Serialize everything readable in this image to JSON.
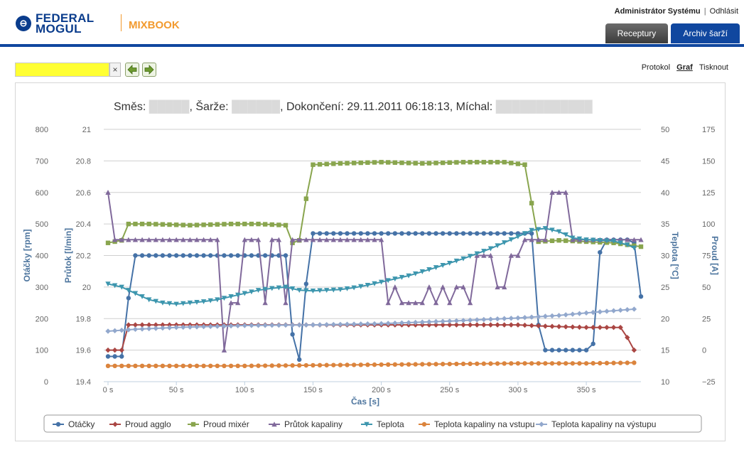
{
  "brand": {
    "logo_line1": "FEDERAL",
    "logo_line2": "MOGUL",
    "app_name": "MIXBOOK"
  },
  "user_bar": {
    "user": "Administrátor Systému",
    "separator": "|",
    "logout": "Odhlásit"
  },
  "tabs": [
    {
      "label": "Receptury",
      "active": false
    },
    {
      "label": "Archiv šarží",
      "active": true
    }
  ],
  "search": {
    "value": "",
    "clear_symbol": "×"
  },
  "view_links": [
    {
      "label": "Protokol",
      "current": false
    },
    {
      "label": "Graf",
      "current": true
    },
    {
      "label": "Tisknout",
      "current": false
    }
  ],
  "colors": {
    "brand_blue": "#10479f",
    "brand_orange": "#f29a2e",
    "search_highlight": "#ffff33"
  },
  "chart_data": {
    "type": "line",
    "title_prefix": "Směs: ",
    "title_batch_label": ", Šarže: ",
    "title_completion": ", Dokončení: 29.11.2011 06:18:13, Míchal: ",
    "xlabel": "Čas [s]",
    "x_ticks": [
      "0 s",
      "50 s",
      "100 s",
      "150 s",
      "200 s",
      "250 s",
      "300 s",
      "350 s"
    ],
    "x_range": [
      0,
      390
    ],
    "grid": true,
    "legend_position": "bottom",
    "axes": [
      {
        "label": "Otáčky [rpm]",
        "range": [
          0,
          800
        ],
        "ticks": [
          "800",
          "700",
          "600",
          "500",
          "400",
          "300",
          "200",
          "100",
          "0"
        ],
        "side": "left"
      },
      {
        "label": "Průtok [l/min]",
        "range": [
          19.4,
          21
        ],
        "ticks": [
          "21",
          "20.8",
          "20.6",
          "20.4",
          "20.2",
          "20",
          "19.8",
          "19.6",
          "19.4"
        ],
        "side": "left"
      },
      {
        "label": "Teplota [°C]",
        "range": [
          10,
          50
        ],
        "ticks": [
          "50",
          "45",
          "40",
          "35",
          "30",
          "25",
          "20",
          "15",
          "10"
        ],
        "side": "right"
      },
      {
        "label": "Proud [A]",
        "range": [
          -25,
          175
        ],
        "ticks": [
          "175",
          "150",
          "125",
          "100",
          "75",
          "50",
          "25",
          "0",
          "−25"
        ],
        "side": "right"
      }
    ],
    "series": [
      {
        "name": "Otáčky",
        "color": "#4572a7",
        "marker": "circle",
        "axis": 0,
        "points": [
          [
            0,
            80
          ],
          [
            5,
            80
          ],
          [
            10,
            80
          ],
          [
            15,
            265
          ],
          [
            20,
            400
          ],
          [
            30,
            400
          ],
          [
            40,
            400
          ],
          [
            50,
            400
          ],
          [
            60,
            400
          ],
          [
            70,
            400
          ],
          [
            80,
            400
          ],
          [
            90,
            400
          ],
          [
            100,
            400
          ],
          [
            110,
            400
          ],
          [
            120,
            400
          ],
          [
            130,
            400
          ],
          [
            135,
            150
          ],
          [
            140,
            70
          ],
          [
            145,
            310
          ],
          [
            150,
            470
          ],
          [
            160,
            470
          ],
          [
            180,
            470
          ],
          [
            200,
            470
          ],
          [
            220,
            470
          ],
          [
            240,
            470
          ],
          [
            260,
            470
          ],
          [
            280,
            470
          ],
          [
            300,
            470
          ],
          [
            310,
            470
          ],
          [
            315,
            180
          ],
          [
            320,
            100
          ],
          [
            330,
            100
          ],
          [
            340,
            100
          ],
          [
            350,
            100
          ],
          [
            355,
            120
          ],
          [
            360,
            410
          ],
          [
            365,
            450
          ],
          [
            370,
            450
          ],
          [
            380,
            450
          ],
          [
            385,
            440
          ],
          [
            390,
            270
          ]
        ]
      },
      {
        "name": "Proud agglo",
        "color": "#aa4643",
        "marker": "diamond",
        "axis": 3,
        "points": [
          [
            0,
            0
          ],
          [
            5,
            0
          ],
          [
            10,
            0
          ],
          [
            15,
            20
          ],
          [
            20,
            20
          ],
          [
            50,
            20
          ],
          [
            100,
            20
          ],
          [
            150,
            20
          ],
          [
            200,
            20
          ],
          [
            250,
            20
          ],
          [
            300,
            20
          ],
          [
            320,
            19
          ],
          [
            350,
            18
          ],
          [
            375,
            18
          ],
          [
            380,
            10
          ],
          [
            385,
            0
          ]
        ]
      },
      {
        "name": "Proud mixér",
        "color": "#89a54e",
        "marker": "square",
        "axis": 3,
        "points": [
          [
            0,
            85
          ],
          [
            10,
            87
          ],
          [
            15,
            100
          ],
          [
            30,
            100
          ],
          [
            60,
            99
          ],
          [
            90,
            100
          ],
          [
            110,
            100
          ],
          [
            130,
            99
          ],
          [
            135,
            85
          ],
          [
            140,
            87
          ],
          [
            145,
            120
          ],
          [
            150,
            147
          ],
          [
            170,
            148
          ],
          [
            200,
            149
          ],
          [
            230,
            148
          ],
          [
            260,
            149
          ],
          [
            290,
            149
          ],
          [
            305,
            147
          ],
          [
            315,
            86
          ],
          [
            330,
            87
          ],
          [
            350,
            86
          ],
          [
            370,
            85
          ],
          [
            390,
            82
          ]
        ]
      },
      {
        "name": "Průtok kapaliny",
        "color": "#80699b",
        "marker": "triangle",
        "axis": 1,
        "points": [
          [
            0,
            20.6
          ],
          [
            5,
            20.3
          ],
          [
            20,
            20.3
          ],
          [
            50,
            20.3
          ],
          [
            80,
            20.3
          ],
          [
            85,
            19.6
          ],
          [
            90,
            19.9
          ],
          [
            95,
            19.9
          ],
          [
            100,
            20.3
          ],
          [
            110,
            20.3
          ],
          [
            115,
            19.9
          ],
          [
            120,
            20.3
          ],
          [
            125,
            20.3
          ],
          [
            130,
            19.9
          ],
          [
            135,
            20.3
          ],
          [
            150,
            20.3
          ],
          [
            180,
            20.3
          ],
          [
            200,
            20.3
          ],
          [
            205,
            19.9
          ],
          [
            210,
            20
          ],
          [
            215,
            19.9
          ],
          [
            230,
            19.9
          ],
          [
            235,
            20
          ],
          [
            240,
            19.9
          ],
          [
            245,
            20
          ],
          [
            250,
            19.9
          ],
          [
            255,
            20
          ],
          [
            260,
            20
          ],
          [
            265,
            19.9
          ],
          [
            270,
            20.2
          ],
          [
            275,
            20.2
          ],
          [
            280,
            20.2
          ],
          [
            285,
            20
          ],
          [
            290,
            20
          ],
          [
            295,
            20.2
          ],
          [
            300,
            20.2
          ],
          [
            305,
            20.3
          ],
          [
            310,
            20.3
          ],
          [
            320,
            20.3
          ],
          [
            325,
            20.6
          ],
          [
            335,
            20.6
          ],
          [
            340,
            20.3
          ],
          [
            360,
            20.3
          ],
          [
            390,
            20.3
          ]
        ]
      },
      {
        "name": "Teplota",
        "color": "#3d96ae",
        "marker": "triangle-down",
        "axis": 2,
        "points": [
          [
            0,
            25.5
          ],
          [
            10,
            25
          ],
          [
            20,
            24
          ],
          [
            30,
            23
          ],
          [
            40,
            22.5
          ],
          [
            50,
            22.3
          ],
          [
            60,
            22.5
          ],
          [
            70,
            22.7
          ],
          [
            80,
            23
          ],
          [
            90,
            23.5
          ],
          [
            100,
            24
          ],
          [
            110,
            24.5
          ],
          [
            120,
            24.8
          ],
          [
            130,
            25
          ],
          [
            140,
            24.5
          ],
          [
            150,
            24.4
          ],
          [
            160,
            24.5
          ],
          [
            170,
            24.6
          ],
          [
            180,
            24.9
          ],
          [
            190,
            25.3
          ],
          [
            200,
            25.8
          ],
          [
            220,
            26.8
          ],
          [
            240,
            28.1
          ],
          [
            260,
            29.5
          ],
          [
            280,
            31.1
          ],
          [
            300,
            33
          ],
          [
            310,
            34
          ],
          [
            320,
            34.3
          ],
          [
            330,
            33.8
          ],
          [
            340,
            32.8
          ],
          [
            350,
            32.5
          ],
          [
            360,
            32.4
          ],
          [
            370,
            32.3
          ],
          [
            380,
            31.7
          ],
          [
            385,
            31.2
          ]
        ]
      },
      {
        "name": "Teplota kapaliny na vstupu",
        "color": "#db843d",
        "marker": "circle",
        "axis": 2,
        "points": [
          [
            0,
            12.5
          ],
          [
            50,
            12.5
          ],
          [
            100,
            12.5
          ],
          [
            150,
            12.6
          ],
          [
            200,
            12.7
          ],
          [
            250,
            12.8
          ],
          [
            300,
            12.9
          ],
          [
            350,
            12.9
          ],
          [
            385,
            13
          ]
        ]
      },
      {
        "name": "Teplota kapaliny na výstupu",
        "color": "#92a8cd",
        "marker": "diamond",
        "axis": 2,
        "points": [
          [
            0,
            18
          ],
          [
            20,
            18.3
          ],
          [
            50,
            18.6
          ],
          [
            100,
            18.9
          ],
          [
            150,
            19
          ],
          [
            200,
            19.2
          ],
          [
            250,
            19.6
          ],
          [
            300,
            20.1
          ],
          [
            330,
            20.5
          ],
          [
            350,
            20.9
          ],
          [
            385,
            21.5
          ]
        ]
      }
    ]
  }
}
